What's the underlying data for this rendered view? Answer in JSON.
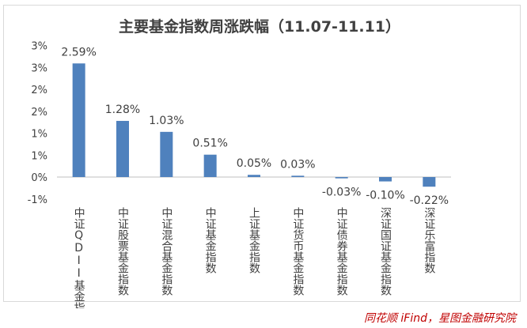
{
  "chart_data": {
    "type": "bar",
    "title": "主要基金指数周涨跌幅（11.07-11.11）",
    "categories": [
      "中证QDII基金指数",
      "中证股票基金指数",
      "中证混合基金指数",
      "中证基金指数",
      "上证基金指数",
      "中证货币基金指数",
      "中证债券基金指数",
      "深证国证基金指数",
      "深证乐富指数"
    ],
    "values": [
      2.59,
      1.28,
      1.03,
      0.51,
      0.05,
      0.03,
      -0.03,
      -0.1,
      -0.22
    ],
    "data_labels": [
      "2.59%",
      "1.28%",
      "1.03%",
      "0.51%",
      "0.05%",
      "0.03%",
      "-0.03%",
      "-0.10%",
      "-0.22%"
    ],
    "y_tick_labels": [
      "3%",
      "3%",
      "2%",
      "2%",
      "1%",
      "1%",
      "0%",
      "-1%"
    ],
    "y_tick_values": [
      3.0,
      2.5,
      2.0,
      1.5,
      1.0,
      0.5,
      0.0,
      -0.5
    ],
    "ylim": [
      -0.5,
      3.0
    ],
    "xlabel": "",
    "ylabel": "",
    "grid": false,
    "legend": "none",
    "bar_color": "#4f81bd"
  },
  "footer": {
    "source": "同花顺 iFind，星图金融研究院"
  }
}
